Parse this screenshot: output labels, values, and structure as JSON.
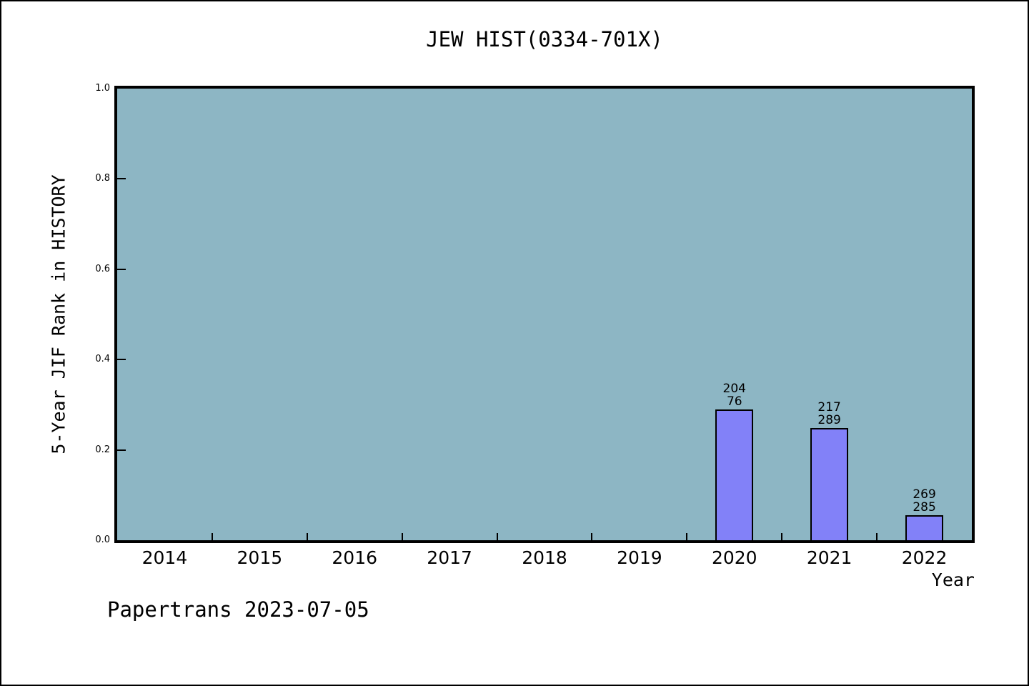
{
  "chart_data": {
    "type": "bar",
    "title": "JEW HIST(0334-701X)",
    "xlabel": "Year",
    "ylabel": "5-Year JIF Rank in HISTORY",
    "categories": [
      "2014",
      "2015",
      "2016",
      "2017",
      "2018",
      "2019",
      "2020",
      "2021",
      "2022"
    ],
    "values": [
      null,
      null,
      null,
      null,
      null,
      null,
      0.29,
      0.249,
      0.055
    ],
    "bar_labels": [
      null,
      null,
      null,
      null,
      null,
      null,
      [
        "204",
        "76"
      ],
      [
        "217",
        "289"
      ],
      [
        "269",
        "285"
      ]
    ],
    "ylim": [
      0.0,
      1.0
    ],
    "yticks": [
      "0.0",
      "0.2",
      "0.4",
      "0.6",
      "0.8",
      "1.0"
    ],
    "grid": false,
    "legend": null,
    "colors": {
      "plot_background": "#8db6c4",
      "bar_fill": "#8281f8",
      "bar_edge": "#000000",
      "axis": "#000000",
      "page_background": "#ffffff"
    }
  },
  "footer": "Papertrans 2023-07-05"
}
